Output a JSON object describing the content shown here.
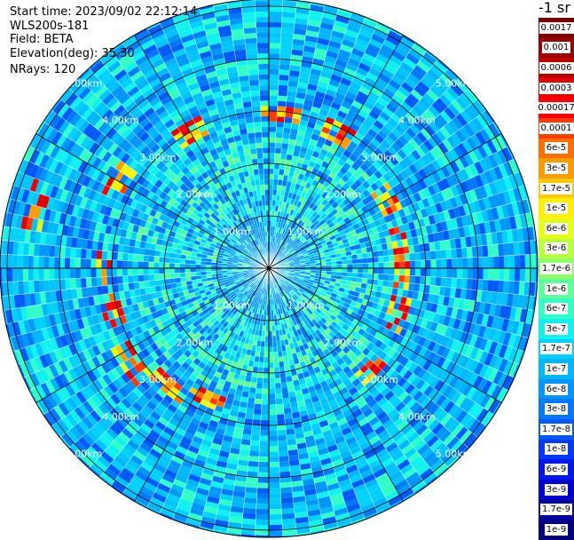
{
  "header": {
    "start_time": "Start time: 2023/09/02 22:12:14",
    "instrument": "WLS200s-181",
    "field": "Field: BETA",
    "elevation": "Elevation(deg): 35.30",
    "nrays": "NRays: 120"
  },
  "chart_data": {
    "type": "heatmap",
    "subtype": "polar-ppi",
    "title": "",
    "range_rings_km": [
      1,
      2,
      3,
      4,
      5
    ],
    "ring_labels": [
      "1.00km",
      "2.00km",
      "3.00km",
      "4.00km",
      "5.00km"
    ],
    "n_rays": 120,
    "colorbar": {
      "title": "-1 sr",
      "label_boxes": [
        {
          "label": "0.0017",
          "color": "#800000"
        },
        {
          "label": "0.001",
          "color": "#9e0000"
        },
        {
          "label": "0.0006",
          "color": "#c00000"
        },
        {
          "label": "0.0003",
          "color": "#e60000"
        },
        {
          "label": "0.00017",
          "color": "#ff0000"
        },
        {
          "label": "0.0001",
          "color": "#ff3a00"
        },
        {
          "label": "6e-5",
          "color": "#ff6e00"
        },
        {
          "label": "3e-5",
          "color": "#ff9a00"
        },
        {
          "label": "1.7e-5",
          "color": "#ffc800"
        },
        {
          "label": "1e-5",
          "color": "#fff000"
        },
        {
          "label": "6e-6",
          "color": "#e4ff14"
        },
        {
          "label": "3e-6",
          "color": "#b8ff3e"
        },
        {
          "label": "1.7e-6",
          "color": "#8cff6a"
        },
        {
          "label": "1e-6",
          "color": "#5cff98"
        },
        {
          "label": "6e-7",
          "color": "#30ffc6"
        },
        {
          "label": "3e-7",
          "color": "#10f2ee"
        },
        {
          "label": "1.7e-7",
          "color": "#00d2ff"
        },
        {
          "label": "1e-7",
          "color": "#00b6ff"
        },
        {
          "label": "6e-8",
          "color": "#0096ff"
        },
        {
          "label": "3e-8",
          "color": "#0078ff"
        },
        {
          "label": "1.7e-8",
          "color": "#0058ff"
        },
        {
          "label": "1e-8",
          "color": "#0038ff"
        },
        {
          "label": "6e-9",
          "color": "#0018f0"
        },
        {
          "label": "3e-9",
          "color": "#0000d2"
        },
        {
          "label": "1.7e-9",
          "color": "#0000a8"
        },
        {
          "label": "1e-9",
          "color": "#000080"
        }
      ]
    },
    "colors": {
      "background": "#ffffff",
      "grid": "#000000",
      "ring_label": "#ffffff"
    },
    "aerosol_hotspots": [
      {
        "azimuth_deg": 5,
        "range_km": 2.95
      },
      {
        "azimuth_deg": 25,
        "range_km": 2.9
      },
      {
        "azimuth_deg": 60,
        "range_km": 2.6
      },
      {
        "azimuth_deg": 80,
        "range_km": 2.55
      },
      {
        "azimuth_deg": 95,
        "range_km": 2.55
      },
      {
        "azimuth_deg": 110,
        "range_km": 2.6
      },
      {
        "azimuth_deg": 135,
        "range_km": 2.75
      },
      {
        "azimuth_deg": 205,
        "range_km": 2.75
      },
      {
        "azimuth_deg": 220,
        "range_km": 2.95
      },
      {
        "azimuth_deg": 235,
        "range_km": 3.2
      },
      {
        "azimuth_deg": 255,
        "range_km": 3.1
      },
      {
        "azimuth_deg": 270,
        "range_km": 3.15
      },
      {
        "azimuth_deg": 285,
        "range_km": 4.6
      },
      {
        "azimuth_deg": 300,
        "range_km": 3.3
      },
      {
        "azimuth_deg": 330,
        "range_km": 3.0
      }
    ]
  }
}
